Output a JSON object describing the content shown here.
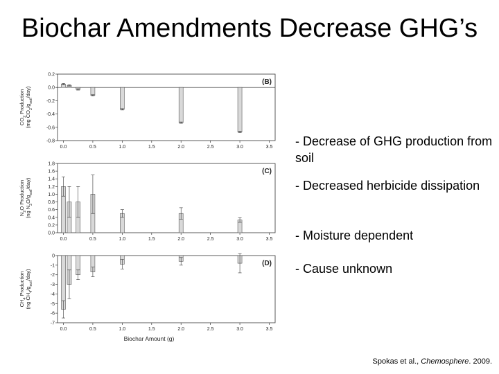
{
  "title": "Biochar Amendments Decrease GHG’s",
  "bullets": [
    "- Decrease of GHG production from soil",
    "- Decreased herbicide dissipation",
    "- Moisture dependent",
    "- Cause unknown"
  ],
  "citation": {
    "prefix": "Spokas et al., ",
    "journal": "Chemosphere",
    "suffix": ". 2009."
  },
  "chart_data": [
    {
      "type": "bar",
      "panel_label": "(B)",
      "ylabel": "CO2 Production (mg CO2/gsoil/day)",
      "x": [
        0.0,
        0.1,
        0.25,
        0.5,
        1.0,
        2.0,
        3.0
      ],
      "values": [
        0.05,
        0.03,
        -0.03,
        -0.12,
        -0.33,
        -0.53,
        -0.67
      ],
      "errors": [
        0.01,
        0.01,
        0.01,
        0.01,
        0.01,
        0.01,
        0.01
      ],
      "xlim": [
        -0.1,
        3.6
      ],
      "ylim": [
        -0.8,
        0.2
      ],
      "xticks": [
        "0.0",
        "0.5",
        "1.0",
        "1.5",
        "2.0",
        "2.5",
        "3.0",
        "3.5"
      ],
      "yticks": [
        "0.2",
        "0.0",
        "-0.2",
        "-0.4",
        "-0.6",
        "-0.8"
      ]
    },
    {
      "type": "bar",
      "panel_label": "(C)",
      "ylabel": "N2O Production (ng N2O/gsoil/day)",
      "x": [
        0.0,
        0.1,
        0.25,
        0.5,
        1.0,
        2.0,
        3.0
      ],
      "values": [
        1.2,
        0.8,
        0.8,
        1.0,
        0.5,
        0.5,
        0.33
      ],
      "errors": [
        0.25,
        0.4,
        0.4,
        0.5,
        0.1,
        0.15,
        0.06
      ],
      "xlim": [
        -0.1,
        3.6
      ],
      "ylim": [
        0,
        1.8
      ],
      "xticks": [
        "0.0",
        "0.5",
        "1.0",
        "1.5",
        "2.0",
        "2.5",
        "3.0",
        "3.5"
      ],
      "yticks": [
        "1.8",
        "1.6",
        "1.4",
        "1.2",
        "1.0",
        "0.8",
        "0.6",
        "0.4",
        "0.2",
        "0.0"
      ]
    },
    {
      "type": "bar",
      "panel_label": "(D)",
      "ylabel": "CH4 Production (ng CH4/gsoil/day)",
      "xlabel": "Biochar Amount (g)",
      "x": [
        0.0,
        0.1,
        0.25,
        0.5,
        1.0,
        2.0,
        3.0
      ],
      "values": [
        -5.6,
        -3.0,
        -2.0,
        -1.7,
        -0.9,
        -0.6,
        -0.8
      ],
      "errors": [
        0.9,
        1.5,
        0.5,
        0.5,
        0.5,
        0.4,
        1.0
      ],
      "xlim": [
        -0.1,
        3.6
      ],
      "ylim": [
        -7,
        0
      ],
      "xticks": [
        "0.0",
        "0.5",
        "1.0",
        "1.5",
        "2.0",
        "2.5",
        "3.0",
        "3.5"
      ],
      "yticks": [
        "0",
        "-1",
        "-2",
        "-3",
        "-4",
        "-5",
        "-6",
        "-7"
      ]
    }
  ],
  "colors": {
    "bar_fill": "#d9d9d9",
    "bar_stroke": "#555555",
    "axis": "#333333",
    "text": "#000000"
  }
}
